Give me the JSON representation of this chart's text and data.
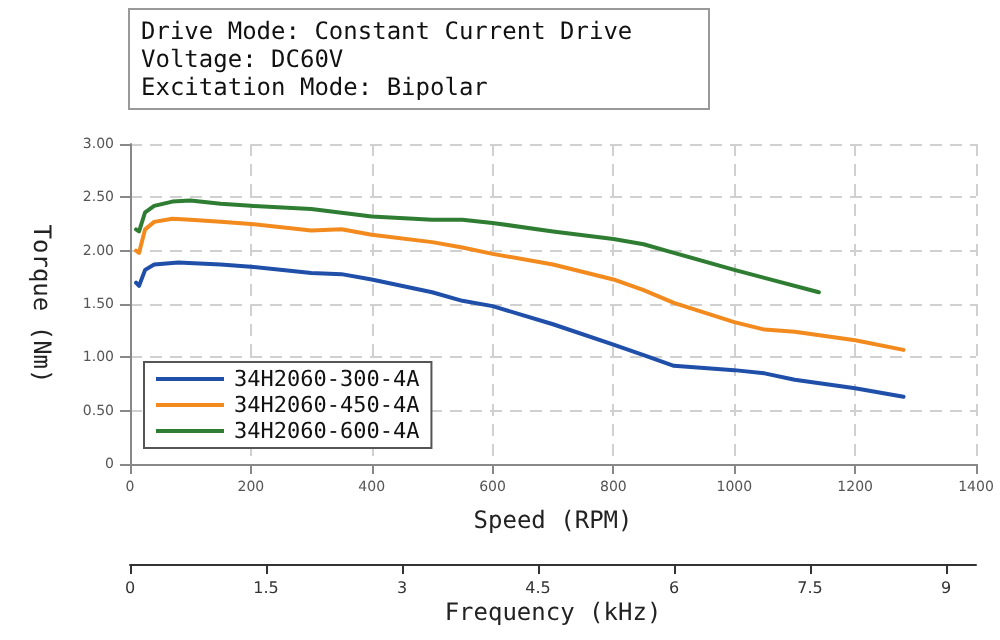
{
  "chart_data": {
    "type": "line",
    "annotations": [
      "Drive Mode: Constant Current Drive",
      "Voltage: DC60V",
      "Excitation Mode: Bipolar"
    ],
    "xlabel": "Speed (RPM)",
    "ylabel": "Torque (Nm)",
    "x2label": "Frequency (kHz)",
    "xlim": [
      0,
      1400
    ],
    "xticks": [
      0,
      200,
      400,
      600,
      800,
      1000,
      1200,
      1400
    ],
    "ylim": [
      0,
      3
    ],
    "yticks": [
      0,
      {
        "value": 0.5,
        "label": "0.50"
      },
      {
        "value": 1,
        "label": "1.00"
      },
      {
        "value": 1.5,
        "label": "1.50"
      },
      {
        "value": 2,
        "label": "2.00"
      },
      {
        "value": 2.5,
        "label": "2.50"
      },
      {
        "value": 3,
        "label": "3.00"
      }
    ],
    "x2lim": [
      0,
      9.33
    ],
    "x2ticks": [
      0,
      1.5,
      3,
      4.5,
      6,
      7.5,
      9
    ],
    "grid": true,
    "legend": "bottom left",
    "marker": "none",
    "line_style": "solid",
    "series": [
      {
        "name": "34H2060-300-4A",
        "color": "#1f4fa8",
        "x": [
          10,
          15,
          25,
          40,
          80,
          150,
          200,
          300,
          350,
          400,
          500,
          550,
          600,
          700,
          800,
          850,
          900,
          1000,
          1050,
          1100,
          1200,
          1280
        ],
        "values": [
          1.7,
          1.67,
          1.82,
          1.87,
          1.89,
          1.87,
          1.85,
          1.79,
          1.78,
          1.73,
          1.61,
          1.53,
          1.48,
          1.31,
          1.12,
          1.02,
          0.92,
          0.88,
          0.85,
          0.79,
          0.71,
          0.63
        ]
      },
      {
        "name": "34H2060-450-4A",
        "color": "#f28a1e",
        "x": [
          10,
          15,
          25,
          40,
          70,
          100,
          150,
          200,
          300,
          350,
          400,
          500,
          550,
          600,
          700,
          800,
          850,
          900,
          1000,
          1050,
          1100,
          1200,
          1280
        ],
        "values": [
          2.0,
          1.98,
          2.2,
          2.27,
          2.3,
          2.29,
          2.27,
          2.25,
          2.19,
          2.2,
          2.15,
          2.08,
          2.03,
          1.97,
          1.87,
          1.73,
          1.63,
          1.51,
          1.33,
          1.26,
          1.24,
          1.16,
          1.07
        ]
      },
      {
        "name": "34H2060-600-4A",
        "color": "#2e7d32",
        "x": [
          10,
          15,
          25,
          40,
          70,
          100,
          150,
          200,
          300,
          400,
          500,
          550,
          600,
          700,
          800,
          850,
          900,
          1000,
          1140
        ],
        "values": [
          2.2,
          2.18,
          2.36,
          2.42,
          2.46,
          2.47,
          2.44,
          2.42,
          2.39,
          2.32,
          2.29,
          2.29,
          2.26,
          2.18,
          2.11,
          2.06,
          1.98,
          1.82,
          1.61
        ]
      }
    ]
  }
}
